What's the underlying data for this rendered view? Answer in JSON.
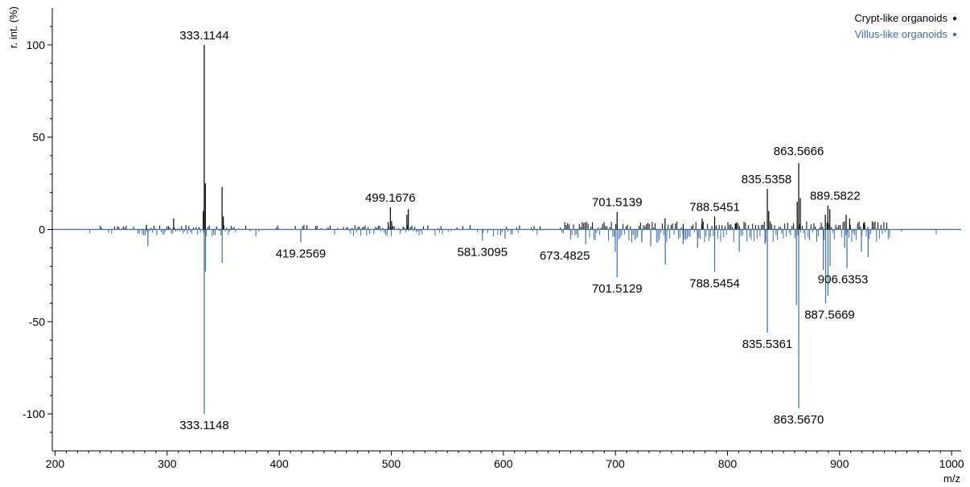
{
  "chart_data": {
    "type": "line",
    "title": "",
    "xlabel": "m/z",
    "ylabel": "r. int. (%)",
    "xlim": [
      200,
      1000
    ],
    "ylim": [
      -120,
      120
    ],
    "x_ticks": [
      200,
      300,
      400,
      500,
      600,
      700,
      800,
      900,
      1000
    ],
    "y_ticks": [
      100,
      50,
      0,
      -50,
      -100
    ],
    "grid": false,
    "legend_position": "top-right",
    "colors": {
      "crypt": "#000000",
      "villus": "#3b6ea5",
      "axis": "#000000",
      "baseline": "#3b6ea5"
    },
    "series": [
      {
        "name": "Crypt-like organoids",
        "color": "#000000",
        "direction": "up",
        "peaks": [
          {
            "x": 333.1144,
            "y": 100,
            "label": "333.1144"
          },
          {
            "x": 499.1676,
            "y": 12,
            "label": "499.1676"
          },
          {
            "x": 701.5139,
            "y": 9.5,
            "label": "701.5139"
          },
          {
            "x": 788.5451,
            "y": 7,
            "label": "788.5451"
          },
          {
            "x": 835.5358,
            "y": 22,
            "label": "835.5358"
          },
          {
            "x": 863.5666,
            "y": 36,
            "label": "863.5666"
          },
          {
            "x": 889.5822,
            "y": 13,
            "label": "889.5822"
          },
          {
            "x": 332.2,
            "y": 10
          },
          {
            "x": 334.1,
            "y": 25
          },
          {
            "x": 349.0,
            "y": 23
          },
          {
            "x": 350.1,
            "y": 7
          },
          {
            "x": 305.8,
            "y": 6
          },
          {
            "x": 281.5,
            "y": 2.5
          },
          {
            "x": 497.2,
            "y": 4
          },
          {
            "x": 500.3,
            "y": 4.5
          },
          {
            "x": 513.9,
            "y": 8
          },
          {
            "x": 515.2,
            "y": 11
          },
          {
            "x": 744.3,
            "y": 6
          },
          {
            "x": 760.5,
            "y": 3
          },
          {
            "x": 777.4,
            "y": 6
          },
          {
            "x": 807.5,
            "y": 3
          },
          {
            "x": 836.8,
            "y": 10
          },
          {
            "x": 862.2,
            "y": 15
          },
          {
            "x": 865.0,
            "y": 17
          },
          {
            "x": 887.3,
            "y": 8
          },
          {
            "x": 891.3,
            "y": 11
          },
          {
            "x": 905.9,
            "y": 8
          },
          {
            "x": 909.0,
            "y": 6
          },
          {
            "x": 922.2,
            "y": 4
          }
        ]
      },
      {
        "name": "Villus-like organoids",
        "color": "#3b6ea5",
        "direction": "down",
        "peaks": [
          {
            "x": 333.1148,
            "y": -100,
            "label": "333.1148"
          },
          {
            "x": 419.2569,
            "y": -7,
            "label": "419.2569"
          },
          {
            "x": 581.3095,
            "y": -6,
            "label": "581.3095"
          },
          {
            "x": 673.4825,
            "y": -8,
            "label": "673.4825"
          },
          {
            "x": 701.5129,
            "y": -26,
            "label": "701.5129"
          },
          {
            "x": 788.5454,
            "y": -23,
            "label": "788.5454"
          },
          {
            "x": 835.5361,
            "y": -56,
            "label": "835.5361"
          },
          {
            "x": 863.567,
            "y": -97,
            "label": "863.5670"
          },
          {
            "x": 887.5669,
            "y": -40,
            "label": "887.5669"
          },
          {
            "x": 906.6353,
            "y": -21,
            "label": "906.6353"
          },
          {
            "x": 282.8,
            "y": -9
          },
          {
            "x": 349.1,
            "y": -18
          },
          {
            "x": 334.2,
            "y": -23
          },
          {
            "x": 699.8,
            "y": -12
          },
          {
            "x": 744.5,
            "y": -19
          },
          {
            "x": 760.4,
            "y": -8
          },
          {
            "x": 773.3,
            "y": -10
          },
          {
            "x": 810.5,
            "y": -12
          },
          {
            "x": 833.5,
            "y": -8
          },
          {
            "x": 861.5,
            "y": -41
          },
          {
            "x": 885.5,
            "y": -22
          },
          {
            "x": 889.6,
            "y": -36
          },
          {
            "x": 891.5,
            "y": -20
          },
          {
            "x": 904.5,
            "y": -10
          },
          {
            "x": 919.5,
            "y": -12
          },
          {
            "x": 925.5,
            "y": -15
          },
          {
            "x": 601.5,
            "y": -5
          },
          {
            "x": 723.5,
            "y": -7
          },
          {
            "x": 731.5,
            "y": -9
          }
        ]
      }
    ]
  }
}
